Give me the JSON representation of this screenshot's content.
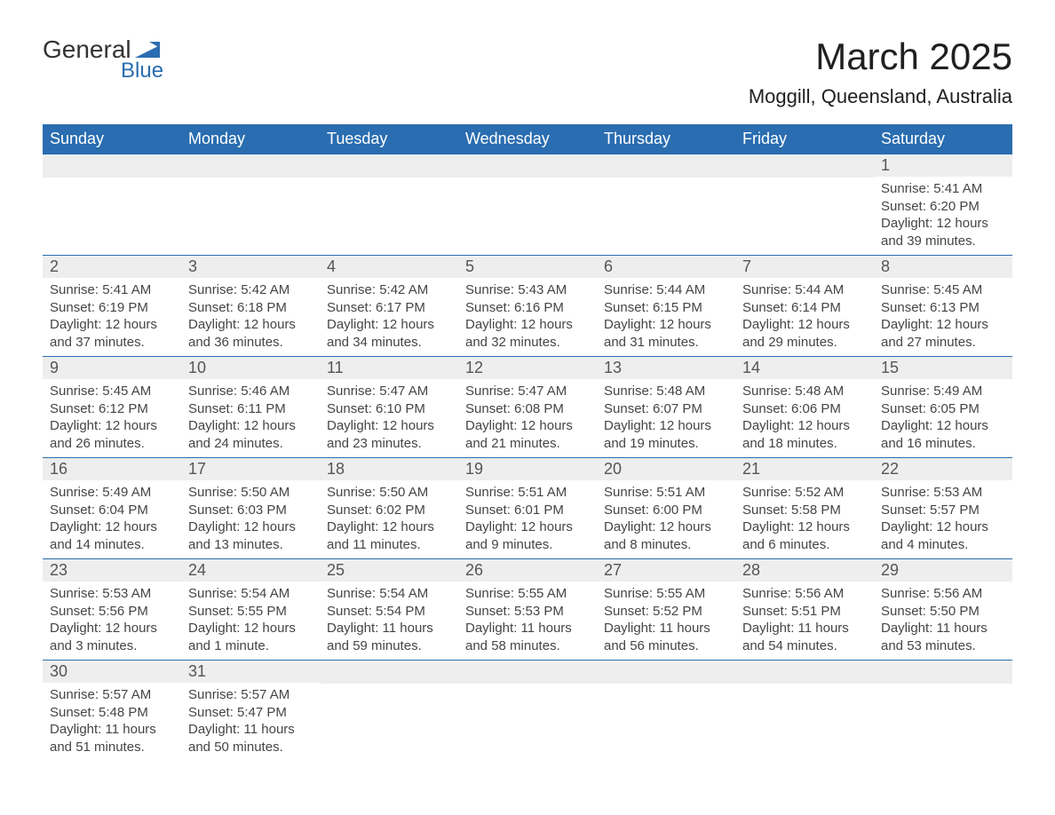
{
  "brand": {
    "word1": "General",
    "word2": "Blue",
    "accent_color": "#2a6db0"
  },
  "title": {
    "month": "March 2025",
    "location": "Moggill, Queensland, Australia"
  },
  "colors": {
    "header_bg": "#2a6db0",
    "header_text": "#ffffff",
    "daynum_bg": "#eeeeee",
    "daynum_text": "#555555",
    "body_text": "#454545",
    "border": "#2a6db0",
    "page_bg": "#ffffff"
  },
  "typography": {
    "title_fontsize": 42,
    "location_fontsize": 22,
    "weekday_fontsize": 18,
    "daynum_fontsize": 18,
    "cell_fontsize": 15
  },
  "weekdays": [
    "Sunday",
    "Monday",
    "Tuesday",
    "Wednesday",
    "Thursday",
    "Friday",
    "Saturday"
  ],
  "labels": {
    "sunrise": "Sunrise:",
    "sunset": "Sunset:",
    "daylight": "Daylight:"
  },
  "weeks": [
    [
      null,
      null,
      null,
      null,
      null,
      null,
      {
        "d": "1",
        "sunrise": "5:41 AM",
        "sunset": "6:20 PM",
        "daylight": "12 hours and 39 minutes."
      }
    ],
    [
      {
        "d": "2",
        "sunrise": "5:41 AM",
        "sunset": "6:19 PM",
        "daylight": "12 hours and 37 minutes."
      },
      {
        "d": "3",
        "sunrise": "5:42 AM",
        "sunset": "6:18 PM",
        "daylight": "12 hours and 36 minutes."
      },
      {
        "d": "4",
        "sunrise": "5:42 AM",
        "sunset": "6:17 PM",
        "daylight": "12 hours and 34 minutes."
      },
      {
        "d": "5",
        "sunrise": "5:43 AM",
        "sunset": "6:16 PM",
        "daylight": "12 hours and 32 minutes."
      },
      {
        "d": "6",
        "sunrise": "5:44 AM",
        "sunset": "6:15 PM",
        "daylight": "12 hours and 31 minutes."
      },
      {
        "d": "7",
        "sunrise": "5:44 AM",
        "sunset": "6:14 PM",
        "daylight": "12 hours and 29 minutes."
      },
      {
        "d": "8",
        "sunrise": "5:45 AM",
        "sunset": "6:13 PM",
        "daylight": "12 hours and 27 minutes."
      }
    ],
    [
      {
        "d": "9",
        "sunrise": "5:45 AM",
        "sunset": "6:12 PM",
        "daylight": "12 hours and 26 minutes."
      },
      {
        "d": "10",
        "sunrise": "5:46 AM",
        "sunset": "6:11 PM",
        "daylight": "12 hours and 24 minutes."
      },
      {
        "d": "11",
        "sunrise": "5:47 AM",
        "sunset": "6:10 PM",
        "daylight": "12 hours and 23 minutes."
      },
      {
        "d": "12",
        "sunrise": "5:47 AM",
        "sunset": "6:08 PM",
        "daylight": "12 hours and 21 minutes."
      },
      {
        "d": "13",
        "sunrise": "5:48 AM",
        "sunset": "6:07 PM",
        "daylight": "12 hours and 19 minutes."
      },
      {
        "d": "14",
        "sunrise": "5:48 AM",
        "sunset": "6:06 PM",
        "daylight": "12 hours and 18 minutes."
      },
      {
        "d": "15",
        "sunrise": "5:49 AM",
        "sunset": "6:05 PM",
        "daylight": "12 hours and 16 minutes."
      }
    ],
    [
      {
        "d": "16",
        "sunrise": "5:49 AM",
        "sunset": "6:04 PM",
        "daylight": "12 hours and 14 minutes."
      },
      {
        "d": "17",
        "sunrise": "5:50 AM",
        "sunset": "6:03 PM",
        "daylight": "12 hours and 13 minutes."
      },
      {
        "d": "18",
        "sunrise": "5:50 AM",
        "sunset": "6:02 PM",
        "daylight": "12 hours and 11 minutes."
      },
      {
        "d": "19",
        "sunrise": "5:51 AM",
        "sunset": "6:01 PM",
        "daylight": "12 hours and 9 minutes."
      },
      {
        "d": "20",
        "sunrise": "5:51 AM",
        "sunset": "6:00 PM",
        "daylight": "12 hours and 8 minutes."
      },
      {
        "d": "21",
        "sunrise": "5:52 AM",
        "sunset": "5:58 PM",
        "daylight": "12 hours and 6 minutes."
      },
      {
        "d": "22",
        "sunrise": "5:53 AM",
        "sunset": "5:57 PM",
        "daylight": "12 hours and 4 minutes."
      }
    ],
    [
      {
        "d": "23",
        "sunrise": "5:53 AM",
        "sunset": "5:56 PM",
        "daylight": "12 hours and 3 minutes."
      },
      {
        "d": "24",
        "sunrise": "5:54 AM",
        "sunset": "5:55 PM",
        "daylight": "12 hours and 1 minute."
      },
      {
        "d": "25",
        "sunrise": "5:54 AM",
        "sunset": "5:54 PM",
        "daylight": "11 hours and 59 minutes."
      },
      {
        "d": "26",
        "sunrise": "5:55 AM",
        "sunset": "5:53 PM",
        "daylight": "11 hours and 58 minutes."
      },
      {
        "d": "27",
        "sunrise": "5:55 AM",
        "sunset": "5:52 PM",
        "daylight": "11 hours and 56 minutes."
      },
      {
        "d": "28",
        "sunrise": "5:56 AM",
        "sunset": "5:51 PM",
        "daylight": "11 hours and 54 minutes."
      },
      {
        "d": "29",
        "sunrise": "5:56 AM",
        "sunset": "5:50 PM",
        "daylight": "11 hours and 53 minutes."
      }
    ],
    [
      {
        "d": "30",
        "sunrise": "5:57 AM",
        "sunset": "5:48 PM",
        "daylight": "11 hours and 51 minutes."
      },
      {
        "d": "31",
        "sunrise": "5:57 AM",
        "sunset": "5:47 PM",
        "daylight": "11 hours and 50 minutes."
      },
      null,
      null,
      null,
      null,
      null
    ]
  ]
}
